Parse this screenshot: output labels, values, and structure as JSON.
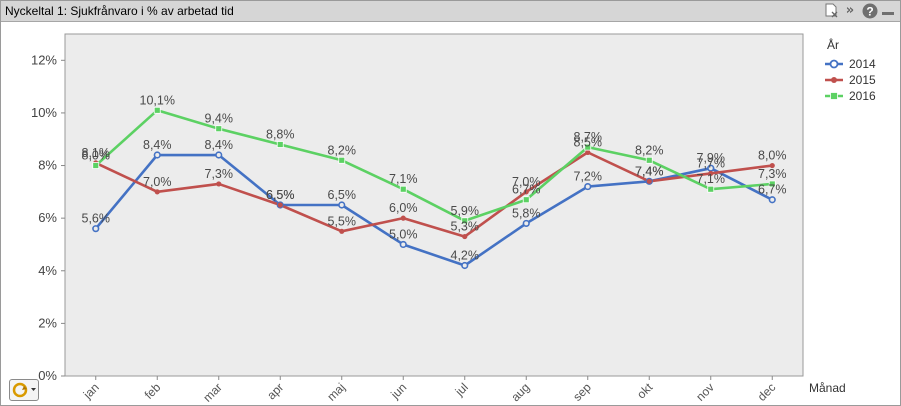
{
  "window": {
    "title": "Nyckeltal 1: Sjukfrånvaro i % av arbetad tid",
    "icons": [
      "clear-selection-icon",
      "fast-forward-icon",
      "help-icon",
      "minimize-icon"
    ]
  },
  "chart_data": {
    "type": "line",
    "title": "",
    "xlabel": "Månad",
    "ylabel": "",
    "categories": [
      "jan",
      "feb",
      "mar",
      "apr",
      "maj",
      "jun",
      "jul",
      "aug",
      "sep",
      "okt",
      "nov",
      "dec"
    ],
    "yticks": [
      "0%",
      "2%",
      "4%",
      "6%",
      "8%",
      "10%",
      "12%"
    ],
    "ylim": [
      0,
      13
    ],
    "grid": false,
    "legend_title": "År",
    "legend_position": "top-right",
    "series": [
      {
        "name": "2014",
        "color": "#4472c4",
        "marker": "circle",
        "values": [
          5.6,
          8.4,
          8.4,
          6.5,
          6.5,
          5.0,
          4.2,
          5.8,
          7.2,
          7.4,
          7.9,
          6.7
        ],
        "labels": [
          "5,6%",
          "8,4%",
          "8,4%",
          "6,5%",
          "6,5%",
          "5,0%",
          "4,2%",
          "5,8%",
          "7,2%",
          "7,4%",
          "7,9%",
          "6,7%"
        ]
      },
      {
        "name": "2015",
        "color": "#c0504d",
        "marker": "dot",
        "values": [
          8.1,
          7.0,
          7.3,
          6.5,
          5.5,
          6.0,
          5.3,
          7.0,
          8.5,
          7.4,
          7.7,
          8.0
        ],
        "labels": [
          "8,1%",
          "7,0%",
          "7,3%",
          "6,5%",
          "5,5%",
          "6,0%",
          "5,3%",
          "7,0%",
          "8,5%",
          "7,4%",
          "7,7%",
          "8,0%"
        ]
      },
      {
        "name": "2016",
        "color": "#5cd163",
        "marker": "square",
        "values": [
          8.0,
          10.1,
          9.4,
          8.8,
          8.2,
          7.1,
          5.9,
          6.7,
          8.7,
          8.2,
          7.1,
          7.3
        ],
        "labels": [
          "8,0%",
          "10,1%",
          "9,4%",
          "8,8%",
          "8,2%",
          "7,1%",
          "5,9%",
          "6,7%",
          "8,7%",
          "8,2%",
          "7,1%",
          "7,3%"
        ]
      }
    ]
  }
}
